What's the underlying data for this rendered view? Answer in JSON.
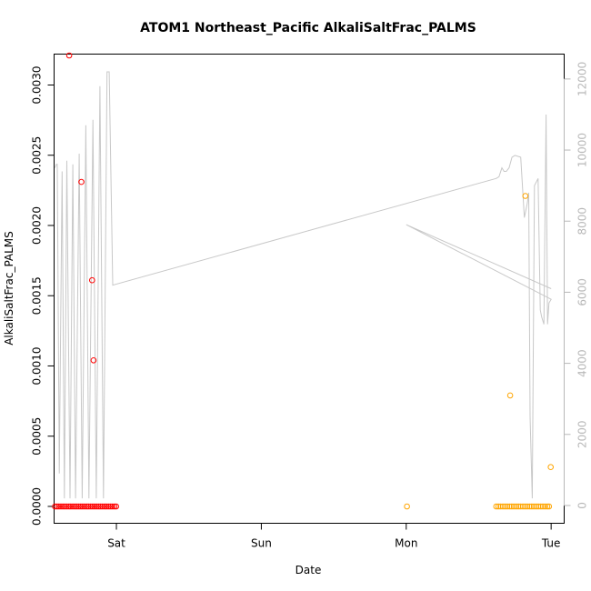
{
  "chart_data": {
    "type": "scatter",
    "title": "ATOM1 Northeast_Pacific AlkaliSaltFrac_PALMS",
    "xlabel": "Date",
    "ylabel": "AlkaliSaltFrac_PALMS",
    "x_units": "days after Friday 00:00",
    "x_ticks": [
      {
        "label": "Sat",
        "value": 1
      },
      {
        "label": "Sun",
        "value": 2
      },
      {
        "label": "Mon",
        "value": 3
      },
      {
        "label": "Tue",
        "value": 4
      }
    ],
    "xlim": [
      0.57,
      4.09
    ],
    "ylim": [
      -0.00012,
      0.00322
    ],
    "y_ticks": [
      {
        "label": "0.0000",
        "value": 0
      },
      {
        "label": "0.0005",
        "value": 0.0005
      },
      {
        "label": "0.0010",
        "value": 0.001
      },
      {
        "label": "0.0015",
        "value": 0.0015
      },
      {
        "label": "0.0020",
        "value": 0.002
      },
      {
        "label": "0.0025",
        "value": 0.0025
      },
      {
        "label": "0.0030",
        "value": 0.003
      }
    ],
    "right_axis": {
      "ylim": [
        -500,
        12700
      ],
      "ticks": [
        {
          "label": "0",
          "value": 0
        },
        {
          "label": "2000",
          "value": 2000
        },
        {
          "label": "4000",
          "value": 4000
        },
        {
          "label": "6000",
          "value": 6000
        },
        {
          "label": "8000",
          "value": 8000
        },
        {
          "label": "10000",
          "value": 10000
        },
        {
          "label": "12000",
          "value": 12000
        }
      ],
      "color": "#b8b8b8"
    },
    "grid": false,
    "series": [
      {
        "color": "#ff0000",
        "marker": "open-circle",
        "points": [
          [
            0.576,
            0
          ],
          [
            0.59,
            0
          ],
          [
            0.603,
            0
          ],
          [
            0.617,
            0
          ],
          [
            0.631,
            0
          ],
          [
            0.644,
            0
          ],
          [
            0.658,
            0
          ],
          [
            0.672,
            0
          ],
          [
            0.685,
            0
          ],
          [
            0.699,
            0
          ],
          [
            0.713,
            0
          ],
          [
            0.726,
            0
          ],
          [
            0.74,
            0
          ],
          [
            0.754,
            0
          ],
          [
            0.767,
            0
          ],
          [
            0.781,
            0
          ],
          [
            0.795,
            0
          ],
          [
            0.808,
            0
          ],
          [
            0.822,
            0
          ],
          [
            0.836,
            0
          ],
          [
            0.849,
            0
          ],
          [
            0.863,
            0
          ],
          [
            0.877,
            0
          ],
          [
            0.89,
            0
          ],
          [
            0.904,
            0
          ],
          [
            0.918,
            0
          ],
          [
            0.931,
            0
          ],
          [
            0.945,
            0
          ],
          [
            0.959,
            0
          ],
          [
            0.972,
            0
          ],
          [
            0.986,
            0
          ],
          [
            0.998,
            0
          ],
          [
            0.674,
            0.00321
          ],
          [
            0.758,
            0.00231
          ],
          [
            0.832,
            0.00161
          ],
          [
            0.842,
            0.00104
          ]
        ]
      },
      {
        "color": "#ffa500",
        "marker": "open-circle",
        "points": [
          [
            3.005,
            0
          ],
          [
            3.621,
            0
          ],
          [
            3.636,
            0
          ],
          [
            3.651,
            0
          ],
          [
            3.667,
            0
          ],
          [
            3.682,
            0
          ],
          [
            3.697,
            0
          ],
          [
            3.713,
            0
          ],
          [
            3.728,
            0
          ],
          [
            3.743,
            0
          ],
          [
            3.759,
            0
          ],
          [
            3.774,
            0
          ],
          [
            3.789,
            0
          ],
          [
            3.805,
            0
          ],
          [
            3.82,
            0
          ],
          [
            3.835,
            0
          ],
          [
            3.851,
            0
          ],
          [
            3.866,
            0
          ],
          [
            3.881,
            0
          ],
          [
            3.897,
            0
          ],
          [
            3.912,
            0
          ],
          [
            3.928,
            0
          ],
          [
            3.943,
            0
          ],
          [
            3.958,
            0
          ],
          [
            3.973,
            0
          ],
          [
            3.985,
            0
          ],
          [
            3.717,
            0.00079
          ],
          [
            3.822,
            0.00221
          ],
          [
            3.997,
            0.00028
          ]
        ]
      }
    ],
    "line_series": {
      "axis": "right",
      "color": "#c8c8c8",
      "points": [
        [
          0.576,
          9500
        ],
        [
          0.585,
          9600
        ],
        [
          0.592,
          9600
        ],
        [
          0.606,
          900
        ],
        [
          0.625,
          9400
        ],
        [
          0.641,
          200
        ],
        [
          0.658,
          9700
        ],
        [
          0.68,
          200
        ],
        [
          0.699,
          9600
        ],
        [
          0.718,
          200
        ],
        [
          0.743,
          9900
        ],
        [
          0.764,
          200
        ],
        [
          0.789,
          10700
        ],
        [
          0.81,
          200
        ],
        [
          0.838,
          10850
        ],
        [
          0.861,
          200
        ],
        [
          0.886,
          11800
        ],
        [
          0.911,
          200
        ],
        [
          0.935,
          12200
        ],
        [
          0.95,
          12200
        ],
        [
          0.975,
          6200
        ],
        [
          3.62,
          9200
        ],
        [
          3.64,
          9250
        ],
        [
          3.66,
          9500
        ],
        [
          3.675,
          9400
        ],
        [
          3.69,
          9400
        ],
        [
          3.71,
          9500
        ],
        [
          3.73,
          9800
        ],
        [
          3.75,
          9850
        ],
        [
          3.79,
          9800
        ],
        [
          3.815,
          8100
        ],
        [
          3.825,
          8300
        ],
        [
          3.835,
          8500
        ],
        [
          3.845,
          8800
        ],
        [
          3.855,
          2500
        ],
        [
          3.87,
          200
        ],
        [
          3.885,
          9000
        ],
        [
          3.91,
          9200
        ],
        [
          3.925,
          5500
        ],
        [
          3.935,
          5300
        ],
        [
          3.95,
          5100
        ],
        [
          3.965,
          11000
        ],
        [
          3.975,
          5100
        ],
        [
          3.985,
          5700
        ],
        [
          4.0,
          5800
        ],
        [
          3.0,
          7900
        ],
        [
          4.0,
          6100
        ]
      ]
    }
  }
}
